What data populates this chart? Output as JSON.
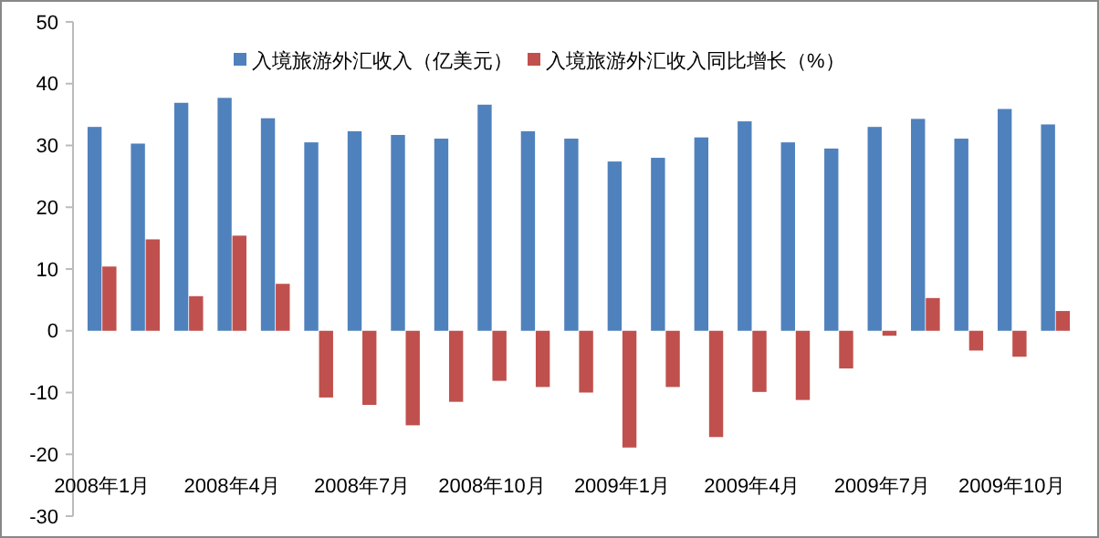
{
  "chart_data": {
    "type": "bar",
    "categories": [
      "2008年1月",
      null,
      null,
      "2008年4月",
      null,
      null,
      "2008年7月",
      null,
      null,
      "2008年10月",
      null,
      null,
      "2009年1月",
      null,
      null,
      "2009年4月",
      null,
      null,
      "2009年7月",
      null,
      null,
      "2009年10月",
      null
    ],
    "series": [
      {
        "name": "入境旅游外汇收入（亿美元）",
        "color": "#4f81bd",
        "values": [
          33.0,
          30.3,
          36.9,
          37.7,
          34.4,
          30.5,
          32.3,
          31.7,
          31.1,
          36.6,
          32.3,
          31.1,
          27.4,
          28.0,
          31.3,
          33.9,
          30.5,
          29.5,
          33.0,
          34.3,
          31.1,
          35.9,
          33.4
        ]
      },
      {
        "name": "入境旅游外汇收入同比增长（%）",
        "color": "#c0504d",
        "values": [
          10.4,
          14.8,
          5.6,
          15.4,
          7.6,
          -10.8,
          -12.0,
          -15.3,
          -11.5,
          -8.1,
          -9.1,
          -10.0,
          -18.9,
          -9.1,
          -17.2,
          -9.9,
          -11.2,
          -6.1,
          -0.8,
          5.3,
          -3.2,
          -4.2,
          3.2
        ]
      }
    ],
    "ylim": [
      -30,
      50
    ],
    "yticks": [
      -30,
      -20,
      -10,
      0,
      10,
      20,
      30,
      40,
      50
    ],
    "grid": false,
    "legend": "top"
  }
}
